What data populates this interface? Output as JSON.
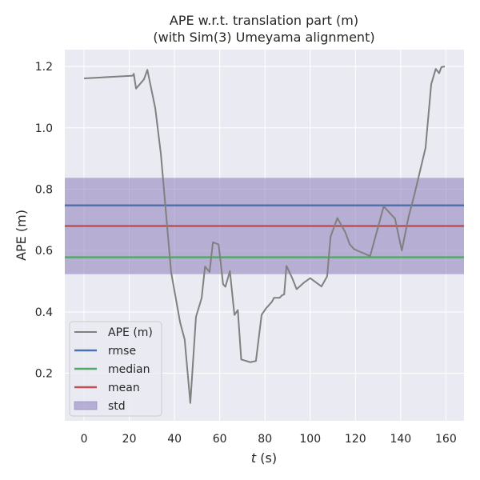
{
  "chart_data": {
    "type": "line",
    "title_line1": "APE w.r.t. translation part (m)",
    "title_line2": "(with Sim(3) Umeyama alignment)",
    "xlabel_italic": "t",
    "xlabel_rest": " (s)",
    "ylabel": "APE (m)",
    "xlim": [
      -8.5,
      168
    ],
    "ylim": [
      0.045,
      1.255
    ],
    "xticks": [
      0,
      20,
      40,
      60,
      80,
      100,
      120,
      140,
      160
    ],
    "yticks": [
      0.2,
      0.4,
      0.6,
      0.8,
      1.0,
      1.2
    ],
    "ytick_labels": [
      "0.2",
      "0.4",
      "0.6",
      "0.8",
      "1.0",
      "1.2"
    ],
    "rmse": 0.747,
    "median": 0.578,
    "mean": 0.68,
    "std_band": [
      0.523,
      0.837
    ],
    "series": [
      {
        "name": "APE (m)",
        "color": "#808080",
        "x": [
          0,
          21.5,
          22,
          23,
          26.5,
          28,
          31.5,
          34,
          38.5,
          42.5,
          44.5,
          47,
          49.5,
          52,
          53.5,
          55.5,
          57,
          59.5,
          61.5,
          62.5,
          64.5,
          66.5,
          68,
          69.5,
          73.5,
          76,
          78.5,
          80.5,
          83,
          84,
          86.5,
          87.5,
          88.5,
          89.5,
          92,
          94,
          97.5,
          100,
          105,
          107.5,
          109,
          112,
          115.5,
          117.5,
          119.5,
          126.5,
          132.5,
          137.5,
          140.5,
          143.5,
          146,
          151,
          153.5,
          155.5,
          157,
          158,
          159.5
        ],
        "y": [
          1.161,
          1.17,
          1.176,
          1.128,
          1.158,
          1.189,
          1.064,
          0.913,
          0.53,
          0.365,
          0.31,
          0.103,
          0.384,
          0.445,
          0.548,
          0.53,
          0.627,
          0.62,
          0.49,
          0.482,
          0.533,
          0.39,
          0.406,
          0.245,
          0.236,
          0.24,
          0.39,
          0.412,
          0.432,
          0.446,
          0.446,
          0.454,
          0.457,
          0.55,
          0.511,
          0.474,
          0.497,
          0.51,
          0.483,
          0.516,
          0.645,
          0.706,
          0.66,
          0.62,
          0.604,
          0.582,
          0.744,
          0.704,
          0.6,
          0.71,
          0.78,
          0.935,
          1.142,
          1.192,
          1.178,
          1.198,
          1.2
        ]
      }
    ],
    "legend": {
      "placement": "lower-left",
      "entries": [
        {
          "label": "APE (m)",
          "kind": "line",
          "color": "#808080"
        },
        {
          "label": "rmse",
          "kind": "line",
          "color": "#4c72b0"
        },
        {
          "label": "median",
          "kind": "line",
          "color": "#55a868"
        },
        {
          "label": "mean",
          "kind": "line",
          "color": "#c44e52"
        },
        {
          "label": "std",
          "kind": "patch",
          "color": "#8172b3"
        }
      ]
    },
    "colors": {
      "background": "#eaeaf2",
      "grid": "#ffffff",
      "rmse": "#4c72b0",
      "median": "#55a868",
      "mean": "#c44e52",
      "std": "#8172b3",
      "series": "#808080"
    }
  }
}
